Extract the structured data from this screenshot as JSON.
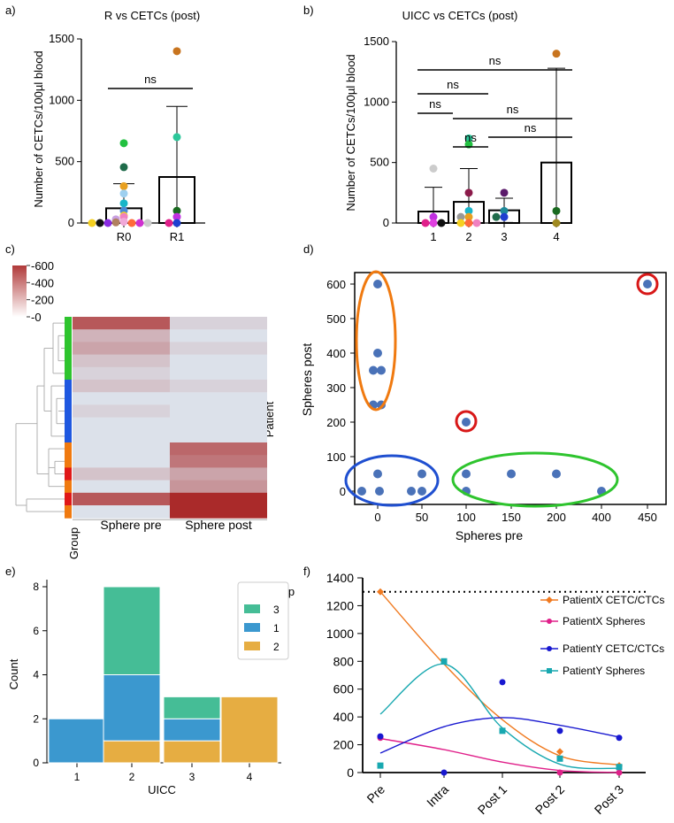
{
  "panel_labels": {
    "a": "a)",
    "b": "b)",
    "c": "c)",
    "d": "d)",
    "e": "e)",
    "f": "f)"
  },
  "chart_data": [
    {
      "panel": "a",
      "type": "bar",
      "title": "R vs CETCs (post)",
      "ylabel": "Number of CETCs/100µl blood",
      "ylim": [
        0,
        1500
      ],
      "yticks": [
        0,
        500,
        1000,
        1500
      ],
      "categories": [
        "R0",
        "R1"
      ],
      "values": [
        120,
        375
      ],
      "errors": [
        200,
        575
      ],
      "points": [
        {
          "category": "R0",
          "value": 650,
          "color": "#22c040"
        },
        {
          "category": "R0",
          "value": 455,
          "color": "#1f6b4a"
        },
        {
          "category": "R0",
          "value": 300,
          "color": "#e8a020"
        },
        {
          "category": "R0",
          "value": 240,
          "color": "#9ed0f0"
        },
        {
          "category": "R0",
          "value": 160,
          "color": "#19b5c8"
        },
        {
          "category": "R0",
          "value": 100,
          "color": "#4b8ad6"
        },
        {
          "category": "R0",
          "value": 60,
          "color": "#f5d020"
        },
        {
          "category": "R0",
          "value": 50,
          "color": "#f080c0"
        },
        {
          "category": "R0",
          "value": 30,
          "color": "#c8a0e0"
        },
        {
          "category": "R0",
          "value": 10,
          "color": "#f0a8d8"
        },
        {
          "category": "R0",
          "value": 5,
          "color": "#b08060"
        },
        {
          "category": "R0",
          "value": 0,
          "color": "#ff6a3a"
        },
        {
          "category": "R0",
          "value": 0,
          "color": "#8a2be2"
        },
        {
          "category": "R0",
          "value": 0,
          "color": "#d030d0"
        },
        {
          "category": "R0",
          "value": 0,
          "color": "#111111"
        },
        {
          "category": "R0",
          "value": 0,
          "color": "#cccccc"
        },
        {
          "category": "R0",
          "value": 0,
          "color": "#f5d020"
        },
        {
          "category": "R1",
          "value": 1400,
          "color": "#c8741e"
        },
        {
          "category": "R1",
          "value": 700,
          "color": "#2cc79a"
        },
        {
          "category": "R1",
          "value": 100,
          "color": "#1a6a20"
        },
        {
          "category": "R1",
          "value": 50,
          "color": "#c030e0"
        },
        {
          "category": "R1",
          "value": 0,
          "color": "#1f3fd0"
        },
        {
          "category": "R1",
          "value": 0,
          "color": "#e0208a"
        }
      ],
      "comparisons": [
        {
          "label": "ns",
          "from": "R0",
          "to": "R1"
        }
      ]
    },
    {
      "panel": "b",
      "type": "bar",
      "title": "UICC vs CETCs (post)",
      "ylabel": "Number of CETCs/100µl blood",
      "ylim": [
        0,
        1500
      ],
      "yticks": [
        0,
        500,
        1000,
        1500
      ],
      "categories": [
        "1",
        "2",
        "3",
        "4"
      ],
      "values": [
        95,
        175,
        105,
        500
      ],
      "errors": [
        200,
        275,
        100,
        780
      ],
      "points": [
        {
          "category": "1",
          "value": 450,
          "color": "#cccccc"
        },
        {
          "category": "1",
          "value": 50,
          "color": "#c030e0"
        },
        {
          "category": "1",
          "value": 0,
          "color": "#e040e0"
        },
        {
          "category": "1",
          "value": 0,
          "color": "#e0208a"
        },
        {
          "category": "1",
          "value": 0,
          "color": "#111111"
        },
        {
          "category": "2",
          "value": 700,
          "color": "#2cc79a"
        },
        {
          "category": "2",
          "value": 650,
          "color": "#22c040"
        },
        {
          "category": "2",
          "value": 250,
          "color": "#8b1a4a"
        },
        {
          "category": "2",
          "value": 100,
          "color": "#19b5c8"
        },
        {
          "category": "2",
          "value": 50,
          "color": "#e8a020"
        },
        {
          "category": "2",
          "value": 50,
          "color": "#999999"
        },
        {
          "category": "2",
          "value": 0,
          "color": "#ff6a3a"
        },
        {
          "category": "2",
          "value": 0,
          "color": "#f5d020"
        },
        {
          "category": "2",
          "value": 0,
          "color": "#f080c0"
        },
        {
          "category": "3",
          "value": 250,
          "color": "#5a1a6a"
        },
        {
          "category": "3",
          "value": 100,
          "color": "#1f8a9a"
        },
        {
          "category": "3",
          "value": 50,
          "color": "#1f3fd0"
        },
        {
          "category": "3",
          "value": 50,
          "color": "#1f6b4a"
        },
        {
          "category": "4",
          "value": 1400,
          "color": "#c8741e"
        },
        {
          "category": "4",
          "value": 100,
          "color": "#1a6a20"
        },
        {
          "category": "4",
          "value": 0,
          "color": "#a08a20"
        }
      ],
      "comparisons": [
        {
          "label": "ns",
          "from": "1",
          "to": "4"
        },
        {
          "label": "ns",
          "from": "1",
          "to": "3"
        },
        {
          "label": "ns",
          "from": "1",
          "to": "2"
        },
        {
          "label": "ns",
          "from": "2",
          "to": "4"
        },
        {
          "label": "ns",
          "from": "3",
          "to": "4"
        },
        {
          "label": "ns",
          "from": "2",
          "to": "3"
        }
      ]
    },
    {
      "panel": "c",
      "type": "heatmap",
      "colorbar_ticks": [
        600,
        400,
        200,
        0
      ],
      "colorbar_range": [
        0,
        600
      ],
      "columns": [
        "Sphere pre",
        "Sphere post"
      ],
      "row_axis_label": "Patient",
      "group_axis_label": "Group",
      "rows": [
        {
          "group": "3",
          "pre": 450,
          "post": 50
        },
        {
          "group": "3",
          "pre": 150,
          "post": 0
        },
        {
          "group": "3",
          "pre": 200,
          "post": 50
        },
        {
          "group": "3",
          "pre": 100,
          "post": 0
        },
        {
          "group": "3",
          "pre": 50,
          "post": 0
        },
        {
          "group": "1",
          "pre": 100,
          "post": 50
        },
        {
          "group": "1",
          "pre": 0,
          "post": 0
        },
        {
          "group": "1",
          "pre": 50,
          "post": 0
        },
        {
          "group": "1",
          "pre": 0,
          "post": 0
        },
        {
          "group": "1",
          "pre": 0,
          "post": 0
        },
        {
          "group": "2",
          "pre": 0,
          "post": 400
        },
        {
          "group": "2",
          "pre": 0,
          "post": 350
        },
        {
          "group": "red",
          "pre": 100,
          "post": 200
        },
        {
          "group": "2",
          "pre": 0,
          "post": 250
        },
        {
          "group": "red",
          "pre": 450,
          "post": 600
        },
        {
          "group": "2",
          "pre": 0,
          "post": 600
        }
      ],
      "group_colors": {
        "3": "#2ec42e",
        "1": "#1f58e0",
        "2": "#f07a10",
        "red": "#e01818"
      }
    },
    {
      "panel": "d",
      "type": "scatter",
      "xlabel": "Spheres pre",
      "ylabel": "Spheres post",
      "xticks": [
        "0",
        "50",
        "100",
        "150",
        "200",
        "400",
        "450"
      ],
      "ylim": [
        -25,
        625
      ],
      "yticks": [
        0,
        100,
        200,
        300,
        400,
        500,
        600
      ],
      "points": [
        {
          "x": "0",
          "y": 600
        },
        {
          "x": "0",
          "y": 400
        },
        {
          "x": "0",
          "y": 350
        },
        {
          "x": "0",
          "y": 250
        },
        {
          "x": "0",
          "y": 0
        },
        {
          "x": "0",
          "y": 50
        },
        {
          "x": "50",
          "y": 50
        },
        {
          "x": "50",
          "y": 0
        },
        {
          "x": "100",
          "y": 200
        },
        {
          "x": "100",
          "y": 50
        },
        {
          "x": "100",
          "y": 0
        },
        {
          "x": "150",
          "y": 50
        },
        {
          "x": "200",
          "y": 50
        },
        {
          "x": "400",
          "y": 0
        },
        {
          "x": "450",
          "y": 600
        }
      ],
      "clusters": [
        {
          "name": "orange group",
          "color": "#f07a10"
        },
        {
          "name": "blue group",
          "color": "#1f4fd0"
        },
        {
          "name": "green group",
          "color": "#2ec42e"
        },
        {
          "name": "red outlier 1",
          "color": "#d81818"
        },
        {
          "name": "red outlier 2",
          "color": "#d81818"
        }
      ]
    },
    {
      "panel": "e",
      "type": "bar",
      "stacked": true,
      "xlabel": "UICC",
      "ylabel": "Count",
      "ylim": [
        0,
        8
      ],
      "yticks": [
        0,
        2,
        4,
        6,
        8
      ],
      "categories": [
        "1",
        "2",
        "3",
        "4"
      ],
      "legend_title": "Group",
      "series": [
        {
          "name": "2",
          "color": "#e6ad42",
          "values": [
            0,
            1,
            1,
            3
          ]
        },
        {
          "name": "1",
          "color": "#3b98cf",
          "values": [
            2,
            3,
            1,
            0
          ]
        },
        {
          "name": "3",
          "color": "#45bd96",
          "values": [
            0,
            4,
            1,
            0
          ]
        }
      ],
      "legend_order": [
        "3",
        "1",
        "2"
      ]
    },
    {
      "panel": "f",
      "type": "line",
      "ylim": [
        0,
        1400
      ],
      "yticks": [
        0,
        200,
        400,
        600,
        800,
        1000,
        1200,
        1400
      ],
      "categories": [
        "Pre",
        "Intra",
        "Post 1",
        "Post 2",
        "Post 3"
      ],
      "reference_line": 1300,
      "series": [
        {
          "name": "PatientX CETC/CTCs",
          "color": "#f07a20",
          "marker": "diamond",
          "values": [
            1300,
            null,
            null,
            150,
            50
          ],
          "fit": [
            1300,
            780,
            380,
            120,
            55
          ]
        },
        {
          "name": "PatientX Spheres",
          "color": "#e0208a",
          "marker": "circle",
          "values": [
            250,
            null,
            null,
            0,
            0
          ],
          "fit": [
            245,
            165,
            75,
            15,
            0
          ]
        },
        {
          "name": "PatientY CETC/CTCs",
          "color": "#1818d0",
          "marker": "circle",
          "values": [
            260,
            0,
            650,
            300,
            250
          ],
          "fit": [
            140,
            330,
            395,
            340,
            255
          ]
        },
        {
          "name": "PatientY Spheres",
          "color": "#18a8b0",
          "marker": "square",
          "values": [
            50,
            800,
            300,
            100,
            40
          ],
          "fit": [
            420,
            780,
            320,
            60,
            30
          ]
        }
      ]
    }
  ]
}
